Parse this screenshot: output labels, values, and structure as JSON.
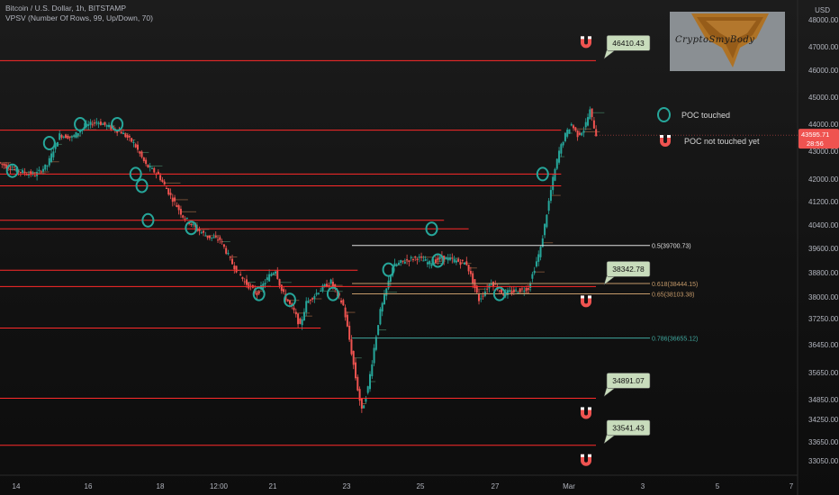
{
  "header": {
    "symbol_line": "Bitcoin / U.S. Dollar, 1h, BITSTAMP",
    "indicator_line": "VPSV (Number Of Rows, 99, Up/Down, 70)"
  },
  "currency_label": "USD",
  "watermark_text": "CryptoSmyBody",
  "legend": {
    "touched": "POC touched",
    "not_touched": "POC not touched yet"
  },
  "chart_data": {
    "type": "candlestick",
    "title": "Bitcoin / U.S. Dollar, 1h, BITSTAMP",
    "ylim": [
      32600,
      48300
    ],
    "y_ticks": [
      33050,
      33650,
      34250,
      34850,
      35650,
      36450,
      37250,
      38000,
      38800,
      39600,
      40400,
      41200,
      42000,
      43000,
      44000,
      45000,
      46000,
      47000,
      48000
    ],
    "y_tick_labels": [
      "33050.00",
      "33650.00",
      "34250.00",
      "34850.00",
      "35650.00",
      "36450.00",
      "37250.00",
      "38000.00",
      "38800.00",
      "39600.00",
      "40400.00",
      "41200.00",
      "42000.00",
      "43000.00",
      "44000.00",
      "45000.00",
      "46000.00",
      "47000.00",
      "48000.00"
    ],
    "x_tick_labels": [
      "14",
      "16",
      "18",
      "12:00",
      "21",
      "23",
      "25",
      "27",
      "Mar",
      "3",
      "5",
      "7"
    ],
    "current_price": {
      "value": "43595.71",
      "countdown": "28:56"
    },
    "price_path": [
      [
        0,
        42600
      ],
      [
        3,
        42300
      ],
      [
        6,
        42150
      ],
      [
        8,
        42500
      ],
      [
        10,
        43600
      ],
      [
        12,
        43500
      ],
      [
        14,
        43900
      ],
      [
        16,
        44100
      ],
      [
        18,
        43900
      ],
      [
        20,
        43700
      ],
      [
        22,
        43300
      ],
      [
        24,
        42500
      ],
      [
        26,
        42150
      ],
      [
        28,
        41400
      ],
      [
        30,
        40700
      ],
      [
        32,
        40300
      ],
      [
        34,
        40000
      ],
      [
        36,
        39900
      ],
      [
        38,
        39100
      ],
      [
        40,
        38500
      ],
      [
        42,
        38100
      ],
      [
        44,
        38700
      ],
      [
        45,
        38900
      ],
      [
        46,
        38200
      ],
      [
        48,
        37500
      ],
      [
        49,
        37000
      ],
      [
        50,
        37800
      ],
      [
        52,
        38200
      ],
      [
        54,
        38500
      ],
      [
        56,
        37700
      ],
      [
        58,
        35500
      ],
      [
        59,
        34500
      ],
      [
        60,
        35200
      ],
      [
        62,
        37500
      ],
      [
        64,
        39000
      ],
      [
        66,
        39200
      ],
      [
        68,
        39300
      ],
      [
        70,
        39100
      ],
      [
        72,
        39300
      ],
      [
        74,
        39200
      ],
      [
        76,
        39100
      ],
      [
        78,
        37900
      ],
      [
        80,
        38500
      ],
      [
        82,
        38100
      ],
      [
        84,
        38200
      ],
      [
        86,
        38300
      ],
      [
        88,
        39600
      ],
      [
        90,
        42000
      ],
      [
        91,
        43000
      ],
      [
        92,
        43600
      ],
      [
        93,
        44000
      ],
      [
        94,
        43600
      ],
      [
        95,
        43800
      ],
      [
        96,
        44500
      ],
      [
        97,
        43600
      ]
    ],
    "poc_levels": [
      {
        "price": 46410.43,
        "label": "46410.43",
        "touched": false
      },
      {
        "price": 43780,
        "touched": true
      },
      {
        "price": 42180,
        "touched": true
      },
      {
        "price": 41760,
        "touched": true
      },
      {
        "price": 40560,
        "touched": true
      },
      {
        "price": 40270,
        "touched": true
      },
      {
        "price": 38880,
        "touched": true
      },
      {
        "price": 38342.78,
        "label": "38342.78",
        "touched": false
      },
      {
        "price": 36960,
        "touched": true
      },
      {
        "price": 34891.07,
        "label": "34891.07",
        "touched": false
      },
      {
        "price": 33541.43,
        "label": "33541.43",
        "touched": false
      }
    ],
    "fib_levels": [
      {
        "ratio": "0.5",
        "price": 39700.73,
        "label": "0.5(39700.73)",
        "color": "#e0e0e0"
      },
      {
        "ratio": "0.618",
        "price": 38444.15,
        "label": "0.618(38444.15)",
        "color": "#c59a6a"
      },
      {
        "ratio": "0.65",
        "price": 38103.38,
        "label": "0.65(38103.38)",
        "color": "#c59a6a"
      },
      {
        "ratio": "0.786",
        "price": 36655.12,
        "label": "0.786(36655.12)",
        "color": "#3fa79e"
      }
    ],
    "poc_touched_markers": [
      [
        2,
        42300
      ],
      [
        8,
        43300
      ],
      [
        13,
        44000
      ],
      [
        19,
        44000
      ],
      [
        22,
        42180
      ],
      [
        23,
        41760
      ],
      [
        24,
        40560
      ],
      [
        31,
        40300
      ],
      [
        42,
        38100
      ],
      [
        47,
        37900
      ],
      [
        54,
        38100
      ],
      [
        63,
        38900
      ],
      [
        70,
        40270
      ],
      [
        71,
        39200
      ],
      [
        81,
        38100
      ],
      [
        88,
        42180
      ]
    ],
    "colors": {
      "up": "#26a69a",
      "down": "#ef5350",
      "poc_line": "#ff2a2a",
      "label_fill": "#c8dcbc",
      "price_line": "#ef5350"
    }
  }
}
